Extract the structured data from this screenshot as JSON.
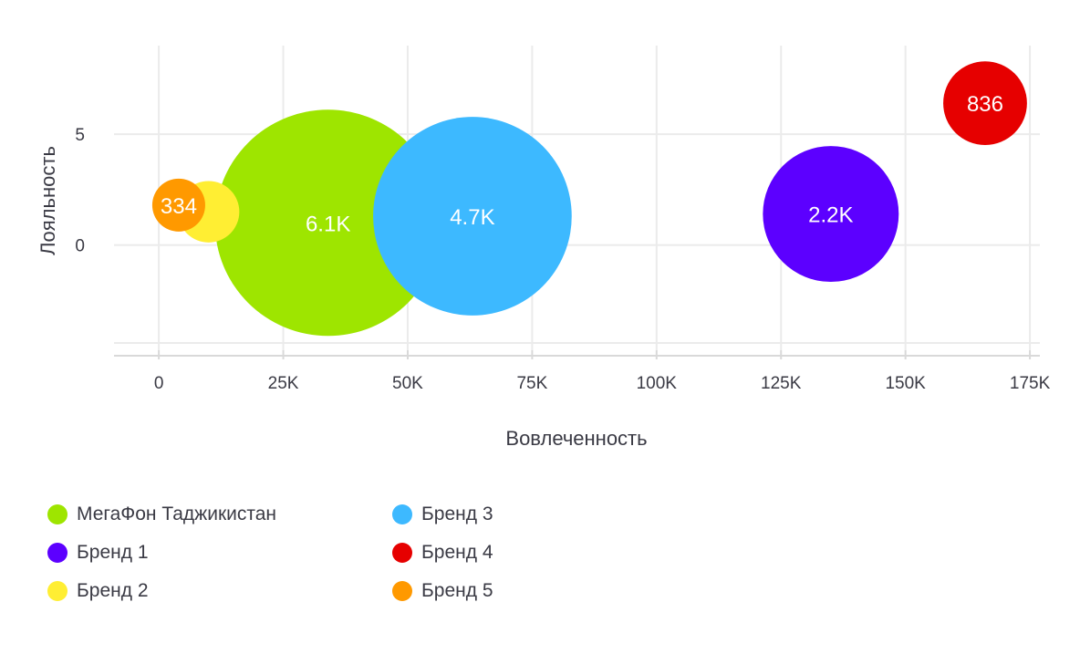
{
  "chart_data": {
    "type": "bubble",
    "xlabel": "Вовлеченность",
    "ylabel": "Лояльность",
    "xlim": [
      -9000,
      177000
    ],
    "ylim": [
      -5,
      9
    ],
    "x_ticks": [
      {
        "value": 0,
        "label": "0"
      },
      {
        "value": 25000,
        "label": "25K"
      },
      {
        "value": 50000,
        "label": "50K"
      },
      {
        "value": 75000,
        "label": "75K"
      },
      {
        "value": 100000,
        "label": "100K"
      },
      {
        "value": 125000,
        "label": "125K"
      },
      {
        "value": 150000,
        "label": "150K"
      },
      {
        "value": 175000,
        "label": "175K"
      }
    ],
    "y_ticks": [
      {
        "value": 0,
        "label": "0"
      },
      {
        "value": 5,
        "label": "5"
      }
    ],
    "grid": true,
    "legend_position": "bottom-left",
    "series": [
      {
        "name": "МегаФон Таджикистан",
        "x": 34000,
        "y": 1.0,
        "size": 6100,
        "label": "6.1K",
        "color": "#9ee500"
      },
      {
        "name": "Бренд 3",
        "x": 63000,
        "y": 1.3,
        "size": 4700,
        "label": "4.7K",
        "color": "#3db9ff"
      },
      {
        "name": "Бренд 1",
        "x": 135000,
        "y": 1.4,
        "size": 2200,
        "label": "2.2K",
        "color": "#5c00ff"
      },
      {
        "name": "Бренд 4",
        "x": 166000,
        "y": 6.4,
        "size": 836,
        "label": "836",
        "color": "#e60000"
      },
      {
        "name": "Бренд 2",
        "x": 10000,
        "y": 1.5,
        "size": 450,
        "label": "",
        "color": "#ffee33"
      },
      {
        "name": "Бренд 5",
        "x": 4000,
        "y": 1.8,
        "size": 334,
        "label": "334",
        "color": "#ff9900"
      }
    ]
  }
}
